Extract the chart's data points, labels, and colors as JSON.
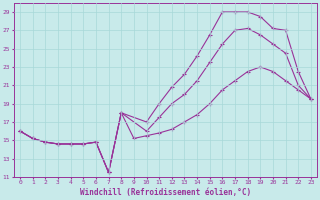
{
  "xlabel": "Windchill (Refroidissement éolien,°C)",
  "background_color": "#c8eaea",
  "grid_color": "#a8d8d8",
  "line_color": "#993399",
  "xlim": [
    -0.5,
    23.5
  ],
  "ylim": [
    11,
    30
  ],
  "xticks": [
    0,
    1,
    2,
    3,
    4,
    5,
    6,
    7,
    8,
    9,
    10,
    11,
    12,
    13,
    14,
    15,
    16,
    17,
    18,
    19,
    20,
    21,
    22,
    23
  ],
  "yticks": [
    11,
    13,
    15,
    17,
    19,
    21,
    23,
    25,
    27,
    29
  ],
  "series1_x": [
    0,
    1,
    2,
    3,
    4,
    5,
    6,
    7,
    8,
    10,
    11,
    12,
    13,
    14,
    15,
    16,
    17,
    18,
    19,
    20,
    21,
    22,
    23
  ],
  "series1_y": [
    16.0,
    15.2,
    14.8,
    14.6,
    14.6,
    14.6,
    14.8,
    11.5,
    18.0,
    17.0,
    19.0,
    20.8,
    22.2,
    24.2,
    26.5,
    29.0,
    29.0,
    29.0,
    28.5,
    27.2,
    27.0,
    22.5,
    19.5
  ],
  "series2_x": [
    0,
    1,
    2,
    3,
    4,
    5,
    6,
    7,
    8,
    10,
    11,
    12,
    13,
    14,
    15,
    16,
    17,
    18,
    19,
    20,
    21,
    22,
    23
  ],
  "series2_y": [
    16.0,
    15.2,
    14.8,
    14.6,
    14.6,
    14.6,
    14.8,
    11.5,
    18.0,
    16.0,
    17.5,
    19.0,
    20.0,
    21.5,
    23.5,
    25.5,
    27.0,
    27.2,
    26.5,
    25.5,
    24.5,
    21.0,
    19.5
  ],
  "series3_x": [
    0,
    1,
    2,
    3,
    4,
    5,
    6,
    7,
    8,
    9,
    10,
    11,
    12,
    13,
    14,
    15,
    16,
    17,
    18,
    19,
    20,
    21,
    22,
    23
  ],
  "series3_y": [
    16.0,
    15.2,
    14.8,
    14.6,
    14.6,
    14.6,
    14.8,
    11.5,
    18.0,
    15.2,
    15.5,
    15.8,
    16.2,
    17.0,
    17.8,
    19.0,
    20.5,
    21.5,
    22.5,
    23.0,
    22.5,
    21.5,
    20.5,
    19.5
  ]
}
